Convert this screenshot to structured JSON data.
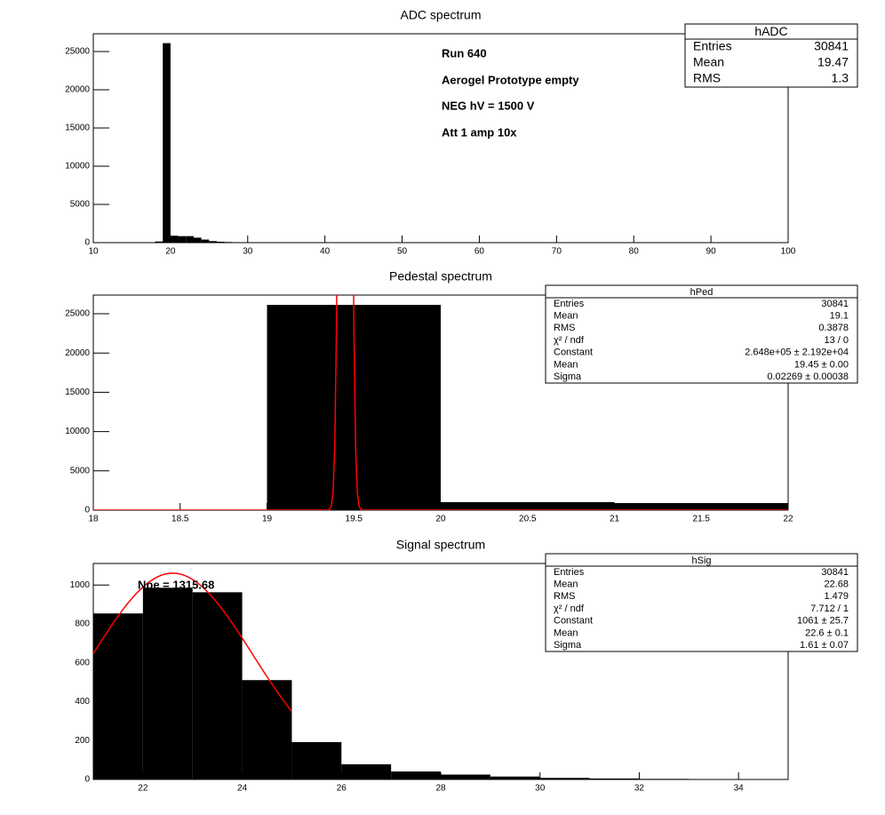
{
  "chart_data": [
    {
      "type": "histogram",
      "title": "ADC spectrum",
      "color": "#000000",
      "bins": [
        18,
        19,
        20,
        21,
        22,
        23,
        24,
        25,
        26,
        27,
        28,
        29,
        30
      ],
      "values": [
        150,
        26100,
        900,
        850,
        850,
        650,
        400,
        200,
        120,
        80,
        50,
        30
      ],
      "xlim": [
        10,
        100
      ],
      "xticks": [
        10,
        20,
        30,
        40,
        50,
        60,
        70,
        80,
        90,
        100
      ],
      "ylim": [
        0,
        27326
      ],
      "yticks": [
        0,
        5000,
        10000,
        15000,
        20000,
        25000
      ],
      "annotations": [
        "Run  640",
        "Aerogel Prototype empty",
        "NEG hV = 1500 V",
        "Att 1 amp 10x"
      ],
      "stats": {
        "name": "hADC",
        "rows": [
          [
            "Entries",
            "30841"
          ],
          [
            "Mean",
            "19.47"
          ],
          [
            "RMS",
            "1.3"
          ]
        ]
      }
    },
    {
      "type": "histogram",
      "title": "Pedestal spectrum",
      "color": "#000000",
      "bins": [
        18,
        19,
        20,
        21,
        22
      ],
      "values": [
        0,
        26131,
        1018,
        900
      ],
      "xlim": [
        18,
        22
      ],
      "xticks": [
        18,
        18.5,
        19,
        19.5,
        20,
        20.5,
        21,
        21.5,
        22
      ],
      "ylim": [
        0,
        27376
      ],
      "yticks": [
        0,
        5000,
        10000,
        15000,
        20000,
        25000
      ],
      "fit": {
        "constant": 264800,
        "mean": 19.45,
        "sigma": 0.02269,
        "range": [
          18,
          22
        ],
        "color": "#ff0000"
      },
      "stats": {
        "name": "hPed",
        "rows": [
          [
            "Entries",
            "30841"
          ],
          [
            "Mean",
            "19.1"
          ],
          [
            "RMS",
            "0.3878"
          ],
          [
            "χ² / ndf",
            "13 / 0"
          ],
          [
            "Constant",
            "2.648e+05 ± 2.192e+04"
          ],
          [
            "Mean",
            "19.45 ± 0.00"
          ],
          [
            "Sigma",
            "0.02269 ± 0.00038"
          ]
        ]
      }
    },
    {
      "type": "histogram",
      "title": "Signal spectrum",
      "color": "#000000",
      "bins": [
        21,
        22,
        23,
        24,
        25,
        26,
        27,
        28,
        29,
        30,
        31,
        32,
        33,
        34,
        35
      ],
      "values": [
        854,
        986,
        963,
        511,
        192,
        78,
        41,
        25,
        15,
        8,
        5,
        3,
        2,
        1
      ],
      "xlim": [
        21,
        35
      ],
      "xticks": [
        22,
        24,
        26,
        28,
        30,
        32,
        34
      ],
      "ylim": [
        0,
        1111
      ],
      "yticks": [
        0,
        200,
        400,
        600,
        800,
        1000
      ],
      "fit": {
        "constant": 1061,
        "mean": 22.6,
        "sigma": 1.61,
        "range": [
          21,
          25
        ],
        "color": "#ff0000"
      },
      "annotations": [
        "Npe = 1315.68"
      ],
      "stats": {
        "name": "hSig",
        "rows": [
          [
            "Entries",
            "30841"
          ],
          [
            "Mean",
            "22.68"
          ],
          [
            "RMS",
            "1.479"
          ],
          [
            "χ² / ndf",
            "7.712 / 1"
          ],
          [
            "Constant",
            "1061 ± 25.7"
          ],
          [
            "Mean",
            "22.6 ± 0.1"
          ],
          [
            "Sigma",
            "1.61 ± 0.07"
          ]
        ]
      }
    }
  ]
}
